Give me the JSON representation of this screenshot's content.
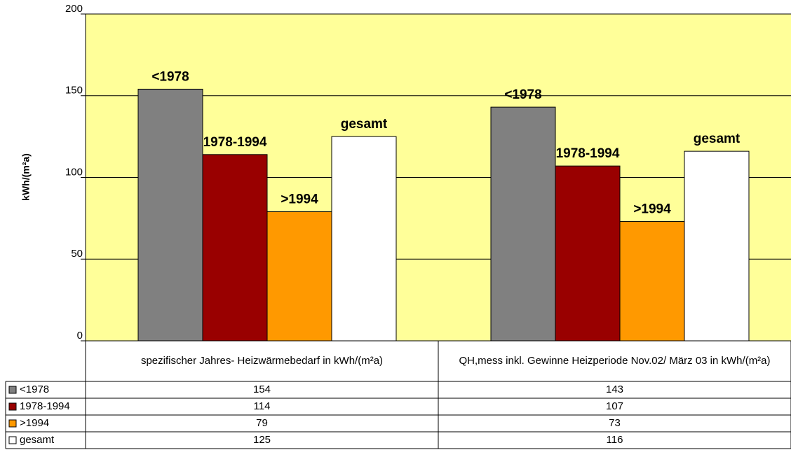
{
  "chart_data": {
    "type": "bar",
    "y_label": "kWh/(m²a)",
    "categories": [
      "spezifischer Jahres- Heizwärmebedarf in kWh/(m²a)",
      "QH,mess inkl. Gewinne Heizperiode Nov.02/ März 03 in kWh/(m²a)"
    ],
    "series": [
      {
        "name": "<1978",
        "color": "#808080",
        "values": [
          154,
          143
        ]
      },
      {
        "name": "1978-1994",
        "color": "#990000",
        "values": [
          114,
          107
        ]
      },
      {
        "name": ">1994",
        "color": "#ff9900",
        "values": [
          79,
          73
        ]
      },
      {
        "name": "gesamt",
        "color": "#ffffff",
        "values": [
          125,
          116
        ]
      }
    ],
    "ylim": [
      0,
      200
    ],
    "yticks": [
      0,
      50,
      100,
      150,
      200
    ],
    "grid": true,
    "background": "#ffff99"
  }
}
